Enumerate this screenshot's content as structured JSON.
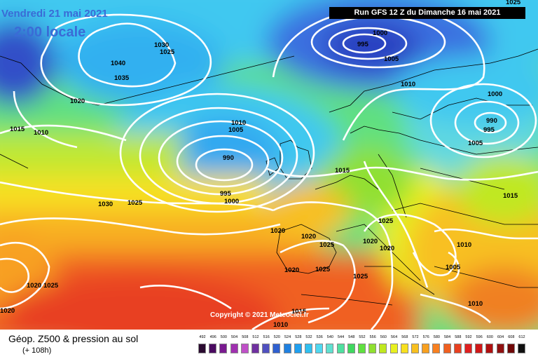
{
  "header": {
    "date": "Vendredi 21 mai 2021",
    "local_time": "2:00 locale",
    "run": "Run GFS 12 Z du Dimanche 16 mai 2021"
  },
  "copyright": "Copyright © 2021 Meteociel.fr",
  "legend": {
    "title": "Géop. Z500 & pression au sol",
    "subtitle": "(+ 108h)",
    "scale_values": [
      "492",
      "496",
      "500",
      "504",
      "508",
      "512",
      "516",
      "520",
      "524",
      "528",
      "532",
      "536",
      "540",
      "544",
      "548",
      "552",
      "556",
      "560",
      "564",
      "568",
      "572",
      "576",
      "580",
      "584",
      "588",
      "592",
      "596",
      "600",
      "604",
      "608",
      "612"
    ],
    "scale_colors": [
      "#2a0a30",
      "#4a0a60",
      "#7a1a90",
      "#a030b0",
      "#c050c8",
      "#7030a0",
      "#5050c0",
      "#3060d0",
      "#2080e0",
      "#20a0f0",
      "#30c0f0",
      "#50d8f0",
      "#60e0d0",
      "#50e0a0",
      "#40d860",
      "#60e040",
      "#90e030",
      "#c0e820",
      "#e8f020",
      "#f8e020",
      "#f8c020",
      "#f8a020",
      "#f88020",
      "#f06020",
      "#e84020",
      "#e02020",
      "#d01818",
      "#b01010",
      "#901010",
      "#700808",
      "#101010"
    ]
  },
  "isobar_labels": [
    {
      "text": "1000"
    },
    {
      "text": "995"
    },
    {
      "text": "1005"
    },
    {
      "text": "1010"
    },
    {
      "text": "1000"
    },
    {
      "text": "990"
    },
    {
      "text": "995"
    },
    {
      "text": "1005"
    },
    {
      "text": "1030"
    },
    {
      "text": "1025"
    },
    {
      "text": "1040"
    },
    {
      "text": "1035"
    },
    {
      "text": "1020"
    },
    {
      "text": "1015"
    },
    {
      "text": "1010"
    },
    {
      "text": "1010"
    },
    {
      "text": "1005"
    },
    {
      "text": "990"
    },
    {
      "text": "995"
    },
    {
      "text": "1000"
    },
    {
      "text": "1015"
    },
    {
      "text": "1030"
    },
    {
      "text": "1025"
    },
    {
      "text": "1020"
    },
    {
      "text": "1020"
    },
    {
      "text": "1025"
    },
    {
      "text": "1020"
    },
    {
      "text": "1025"
    },
    {
      "text": "1020"
    },
    {
      "text": "1015"
    },
    {
      "text": "1010"
    },
    {
      "text": "1005"
    },
    {
      "text": "1010"
    },
    {
      "text": "1020"
    },
    {
      "text": "1025"
    },
    {
      "text": "1025"
    },
    {
      "text": "1020"
    },
    {
      "text": "1025"
    },
    {
      "text": "1015"
    },
    {
      "text": "1010"
    },
    {
      "text": "1020"
    },
    {
      "text": "1025"
    }
  ]
}
